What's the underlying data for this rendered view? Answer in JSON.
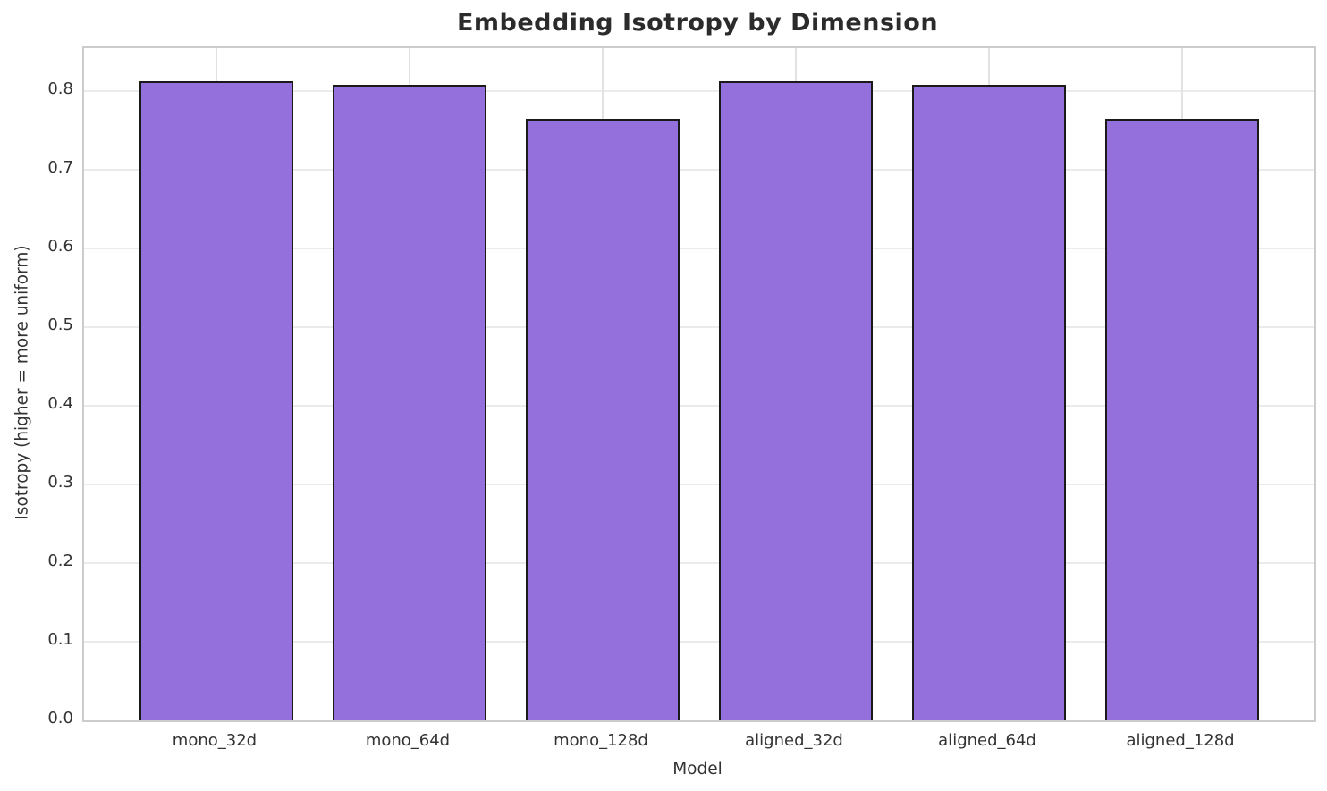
{
  "title": "Embedding Isotropy by Dimension",
  "chart_data": {
    "type": "bar",
    "title": "Embedding Isotropy by Dimension",
    "xlabel": "Model",
    "ylabel": "Isotropy (higher = more uniform)",
    "categories": [
      "mono_32d",
      "mono_64d",
      "mono_128d",
      "aligned_32d",
      "aligned_64d",
      "aligned_128d"
    ],
    "values": [
      0.813,
      0.808,
      0.765,
      0.813,
      0.808,
      0.765
    ],
    "ylim": [
      0,
      0.855
    ],
    "yticks": [
      0.0,
      0.1,
      0.2,
      0.3,
      0.4,
      0.5,
      0.6,
      0.7,
      0.8
    ],
    "ytick_labels": [
      "0.0",
      "0.1",
      "0.2",
      "0.3",
      "0.4",
      "0.5",
      "0.6",
      "0.7",
      "0.8"
    ],
    "grid": true,
    "legend": false,
    "bar_width_units": 0.8,
    "x_margin_units": 0.685,
    "bar_color": "#9370DB",
    "bar_edge_color": "#1a1a1a",
    "grid_color": "#ebebeb",
    "spine_color": "#cccccc",
    "text_color": "#333333",
    "title_color": "#2b2b2b",
    "background_color": "#ffffff"
  }
}
